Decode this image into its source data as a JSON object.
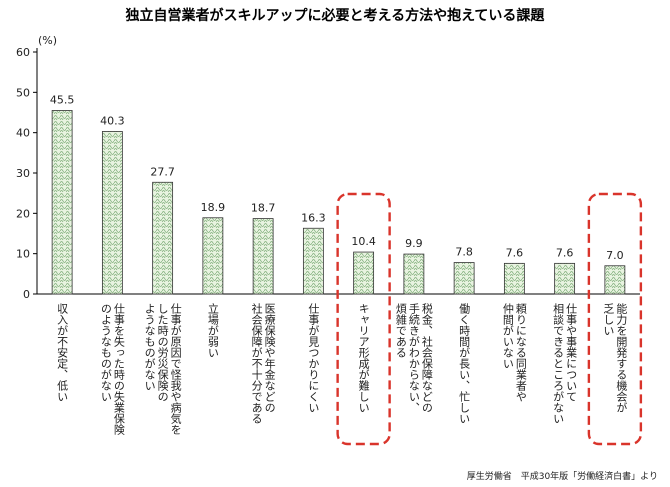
{
  "chart_data": {
    "type": "bar",
    "title": "独立自営業者がスキルアップに必要と考える方法や抱えている課題",
    "unit_label": "(%)",
    "ylim": [
      0,
      60
    ],
    "yticks": [
      0,
      10,
      20,
      30,
      40,
      50,
      60
    ],
    "categories": [
      "収入が不安定、低い",
      "仕事を失った時の失業保険のようなものがない",
      "仕事が原因で怪我や病気をした時の労災保険のようなものがない",
      "立場が弱い",
      "医療保険や年金などの社会保障が不十分である",
      "仕事が見つかりにくい",
      "キャリア形成が難しい",
      "税金、社会保障などの手続きがわからない、煩雑である",
      "働く時間が長い、忙しい",
      "頼りになる同業者や仲間がいない",
      "仕事や事業について相談できるところがない",
      "能力を開発する機会が乏しい"
    ],
    "category_lines": [
      [
        "収入が不安定、低い"
      ],
      [
        "仕事を失った時の失業保険",
        "のようなものがない"
      ],
      [
        "仕事が原因で怪我や病気を",
        "した時の労災保険の",
        "ようなものがない"
      ],
      [
        "立場が弱い"
      ],
      [
        "医療保険や年金などの",
        "社会保障が不十分である"
      ],
      [
        "仕事が見つかりにくい"
      ],
      [
        "キャリア形成が難しい"
      ],
      [
        "税金、社会保障などの",
        "手続きがわからない、",
        "煩雑である"
      ],
      [
        "働く時間が長い、忙しい"
      ],
      [
        "頼りになる同業者や",
        "仲間がいない"
      ],
      [
        "仕事や事業について",
        "相談できるところがない"
      ],
      [
        "能力を開発する機会が",
        "乏しい"
      ]
    ],
    "values": [
      45.5,
      40.3,
      27.7,
      18.9,
      18.7,
      16.3,
      10.4,
      9.9,
      7.8,
      7.6,
      7.6,
      7.0
    ],
    "value_labels": [
      "45.5",
      "40.3",
      "27.7",
      "18.9",
      "18.7",
      "16.3",
      "10.4",
      "9.9",
      "7.8",
      "7.6",
      "7.6",
      "7.0"
    ],
    "highlighted": [
      6,
      11
    ],
    "colors": {
      "bar_fill": "#e8f3e0",
      "bar_pattern": "#7fae7a",
      "bar_stroke": "#333333",
      "highlight": "#d9342b",
      "axis": "#000000"
    }
  },
  "source": "厚生労働省　平成30年版「労働経済白書」より"
}
